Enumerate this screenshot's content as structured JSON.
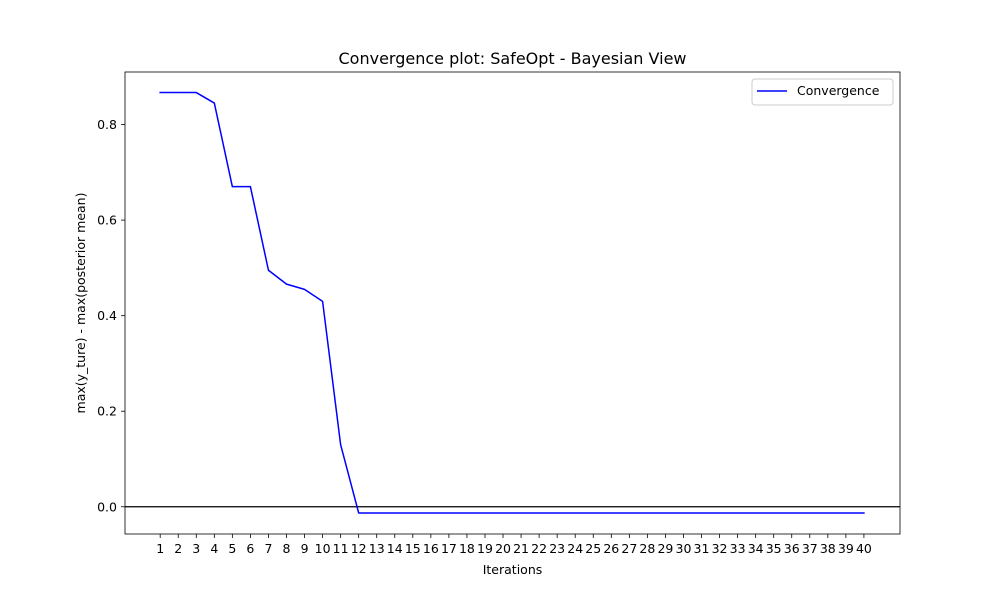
{
  "chart_data": {
    "type": "line",
    "title": "Convergence plot: SafeOpt - Bayesian View",
    "xlabel": "Iterations",
    "ylabel": "max(y_ture) - max(posterior mean)",
    "xlim": [
      -0.95,
      42.0
    ],
    "ylim": [
      -0.057,
      0.91
    ],
    "x_ticks": [
      1,
      2,
      3,
      4,
      5,
      6,
      7,
      8,
      9,
      10,
      11,
      12,
      13,
      14,
      15,
      16,
      17,
      18,
      19,
      20,
      21,
      22,
      23,
      24,
      25,
      26,
      27,
      28,
      29,
      30,
      31,
      32,
      33,
      34,
      35,
      36,
      37,
      38,
      39,
      40
    ],
    "y_ticks": [
      0.0,
      0.2,
      0.4,
      0.6,
      0.8
    ],
    "y_tick_labels": [
      "0.0",
      "0.2",
      "0.4",
      "0.6",
      "0.8"
    ],
    "reference_line_y": 0.0,
    "legend_position": "top-right",
    "series": [
      {
        "name": "Convergence",
        "color": "#0000ff",
        "x": [
          1,
          2,
          3,
          4,
          5,
          6,
          7,
          8,
          9,
          10,
          11,
          12,
          13,
          14,
          15,
          16,
          17,
          18,
          19,
          20,
          21,
          22,
          23,
          24,
          25,
          26,
          27,
          28,
          29,
          30,
          31,
          32,
          33,
          34,
          35,
          36,
          37,
          38,
          39,
          40
        ],
        "values": [
          0.867,
          0.867,
          0.867,
          0.845,
          0.67,
          0.67,
          0.495,
          0.466,
          0.455,
          0.43,
          0.13,
          -0.013,
          -0.013,
          -0.013,
          -0.013,
          -0.013,
          -0.013,
          -0.013,
          -0.013,
          -0.013,
          -0.013,
          -0.013,
          -0.013,
          -0.013,
          -0.013,
          -0.013,
          -0.013,
          -0.013,
          -0.013,
          -0.013,
          -0.013,
          -0.013,
          -0.013,
          -0.013,
          -0.013,
          -0.013,
          -0.013,
          -0.013,
          -0.013,
          -0.013
        ]
      }
    ]
  }
}
